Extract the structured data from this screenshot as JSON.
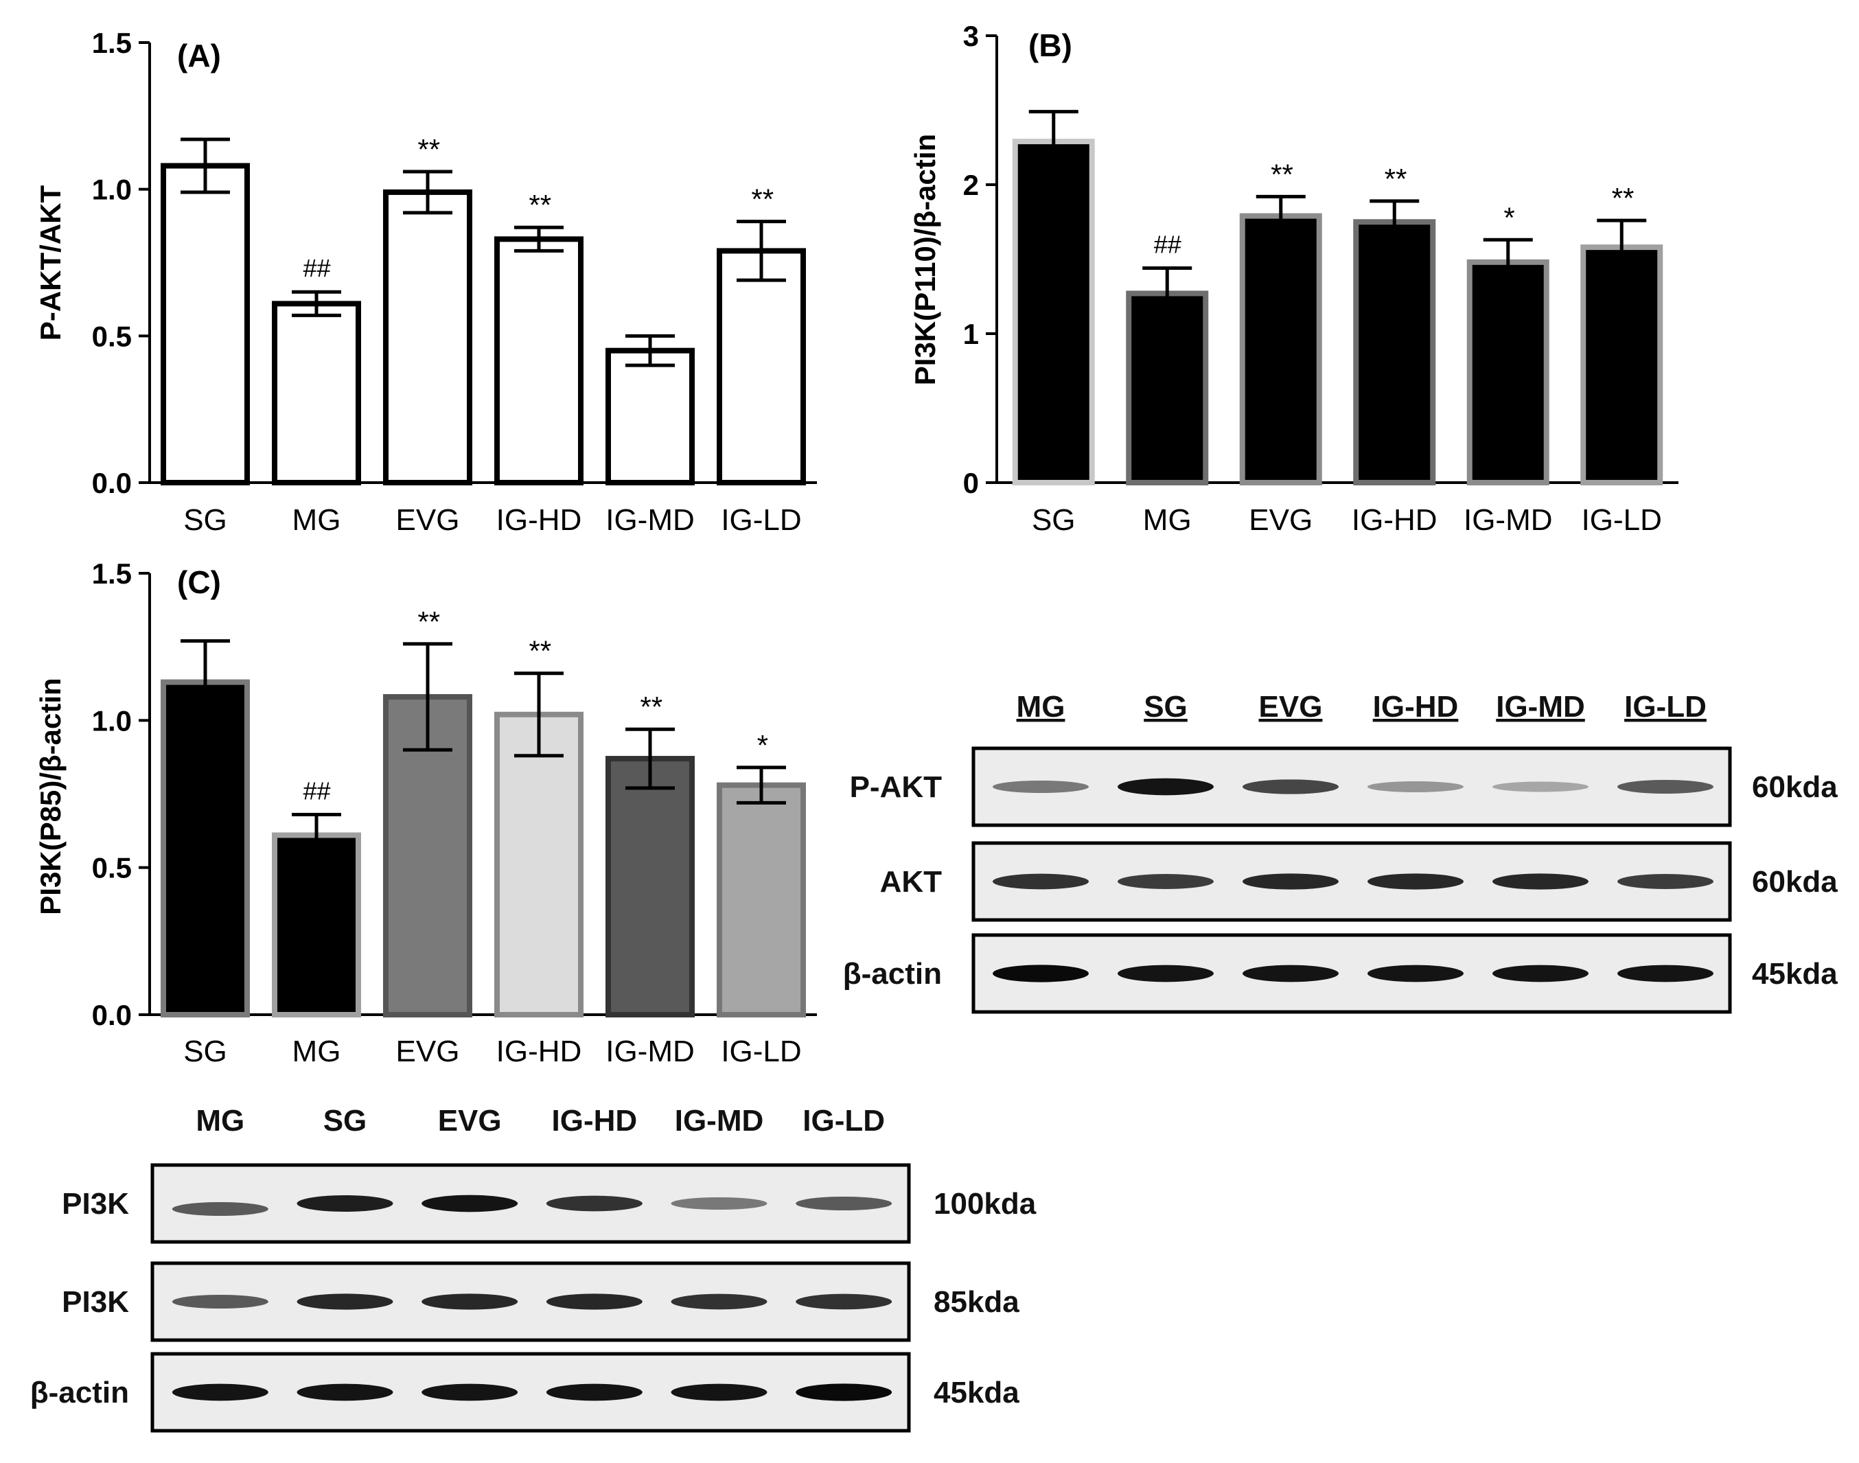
{
  "chart_data": [
    {
      "panel": "(A)",
      "type": "bar",
      "ylabel": "P-AKT/AKT",
      "ylim": [
        0,
        1.5
      ],
      "yticks": [
        0.0,
        0.5,
        1.0,
        1.5
      ],
      "ytick_labels": [
        "0.0",
        "0.5",
        "1.0",
        "1.5"
      ],
      "categories": [
        "SG",
        "MG",
        "EVG",
        "IG-HD",
        "IG-MD",
        "IG-LD"
      ],
      "values": [
        1.08,
        0.61,
        0.99,
        0.83,
        0.45,
        0.79
      ],
      "errors": [
        0.09,
        0.04,
        0.07,
        0.04,
        0.05,
        0.1
      ],
      "annotations": [
        "",
        "##",
        "**",
        "**",
        "",
        "**"
      ],
      "fills": [
        "#ffffff",
        "#ffffff",
        "#ffffff",
        "#ffffff",
        "#ffffff",
        "#ffffff"
      ],
      "strokes": [
        "#000000",
        "#000000",
        "#000000",
        "#000000",
        "#000000",
        "#000000"
      ]
    },
    {
      "panel": "(B)",
      "type": "bar",
      "ylabel": "PI3K(P110)/β-actin",
      "ylim": [
        0,
        3
      ],
      "yticks": [
        0,
        1,
        2,
        3
      ],
      "ytick_labels": [
        "0",
        "1",
        "2",
        "3"
      ],
      "categories": [
        "SG",
        "MG",
        "EVG",
        "IG-HD",
        "IG-MD",
        "IG-LD"
      ],
      "values": [
        2.29,
        1.27,
        1.79,
        1.75,
        1.48,
        1.58
      ],
      "errors": [
        0.2,
        0.17,
        0.13,
        0.14,
        0.15,
        0.18
      ],
      "annotations": [
        "",
        "##",
        "**",
        "**",
        "*",
        "**"
      ],
      "fills": [
        "#000000",
        "#000000",
        "#000000",
        "#000000",
        "#000000",
        "#000000"
      ],
      "strokes": [
        "#c8c8c8",
        "#6e6e6e",
        "#8c8c8c",
        "#6e6e6e",
        "#8c8c8c",
        "#a0a0a0"
      ]
    },
    {
      "panel": "(C)",
      "type": "bar",
      "ylabel": "PI3K(P85)/β-actin",
      "ylim": [
        0,
        1.5
      ],
      "yticks": [
        0.0,
        0.5,
        1.0,
        1.5
      ],
      "ytick_labels": [
        "0.0",
        "0.5",
        "1.0",
        "1.5"
      ],
      "categories": [
        "SG",
        "MG",
        "EVG",
        "IG-HD",
        "IG-MD",
        "IG-LD"
      ],
      "values": [
        1.13,
        0.61,
        1.08,
        1.02,
        0.87,
        0.78
      ],
      "errors": [
        0.14,
        0.07,
        0.18,
        0.14,
        0.1,
        0.06
      ],
      "annotations": [
        "",
        "##",
        "**",
        "**",
        "**",
        "*"
      ],
      "fills": [
        "#000000",
        "#000000",
        "#7a7a7a",
        "#dcdcdc",
        "#595959",
        "#a6a6a6"
      ],
      "strokes": [
        "#7a7a7a",
        "#a0a0a0",
        "#555555",
        "#8a8a8a",
        "#333333",
        "#777777"
      ]
    }
  ],
  "blots": [
    {
      "id": "akt-blot",
      "lanes": [
        "MG",
        "SG",
        "EVG",
        "IG-HD",
        "IG-MD",
        "IG-LD"
      ],
      "rows": [
        {
          "label": "P-AKT",
          "size": "60kda",
          "intensity": [
            0.45,
            0.95,
            0.7,
            0.3,
            0.22,
            0.6
          ]
        },
        {
          "label": "AKT",
          "size": "60kda",
          "intensity": [
            0.8,
            0.75,
            0.85,
            0.85,
            0.85,
            0.75
          ]
        },
        {
          "label": "β-actin",
          "size": "45kda",
          "intensity": [
            1.0,
            0.95,
            0.95,
            0.95,
            0.95,
            0.95
          ]
        }
      ]
    },
    {
      "id": "pi3k-blot",
      "lanes": [
        "MG",
        "SG",
        "EVG",
        "IG-HD",
        "IG-MD",
        "IG-LD"
      ],
      "rows": [
        {
          "label": "PI3K",
          "size": "100kda",
          "intensity": [
            0.6,
            0.9,
            0.95,
            0.8,
            0.45,
            0.6
          ]
        },
        {
          "label": "PI3K",
          "size": "85kda",
          "intensity": [
            0.6,
            0.85,
            0.85,
            0.85,
            0.8,
            0.8
          ]
        },
        {
          "label": "β-actin",
          "size": "45kda",
          "intensity": [
            0.95,
            0.95,
            0.95,
            0.95,
            0.95,
            1.0
          ]
        }
      ]
    }
  ]
}
